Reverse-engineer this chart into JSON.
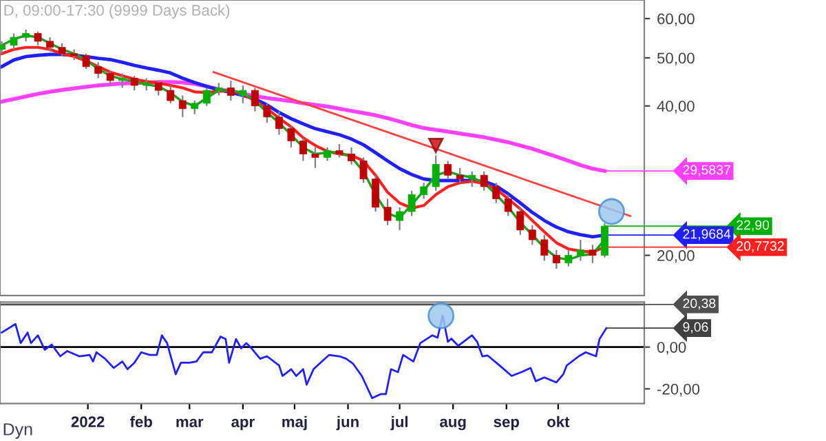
{
  "chart_data": [
    {
      "type": "candlestick",
      "title": "D, 09:00-17:30 (9999 Days Back)",
      "x": [
        "2021-11-12",
        "2021-11-19",
        "2021-11-26",
        "2021-12-03",
        "2021-12-10",
        "2021-12-17",
        "2021-12-24",
        "2021-12-31",
        "2022-01-07",
        "2022-01-14",
        "2022-01-21",
        "2022-01-28",
        "2022-02-04",
        "2022-02-11",
        "2022-02-18",
        "2022-02-25",
        "2022-03-04",
        "2022-03-11",
        "2022-03-18",
        "2022-03-25",
        "2022-04-01",
        "2022-04-08",
        "2022-04-15",
        "2022-04-22",
        "2022-04-29",
        "2022-05-06",
        "2022-05-13",
        "2022-05-20",
        "2022-05-27",
        "2022-06-03",
        "2022-06-10",
        "2022-06-17",
        "2022-06-24",
        "2022-07-01",
        "2022-07-08",
        "2022-07-15",
        "2022-07-22",
        "2022-07-29",
        "2022-08-05",
        "2022-08-12",
        "2022-08-19",
        "2022-08-26",
        "2022-09-02",
        "2022-09-09",
        "2022-09-16",
        "2022-09-23",
        "2022-09-30",
        "2022-10-07",
        "2022-10-14",
        "2022-10-21",
        "2022-10-28"
      ],
      "ohlc": [
        [
          52,
          54,
          51,
          53
        ],
        [
          53,
          56,
          52,
          55
        ],
        [
          55,
          57,
          54,
          56
        ],
        [
          56,
          56.5,
          53,
          54
        ],
        [
          54,
          55,
          51.5,
          52.5
        ],
        [
          52.5,
          53.5,
          50.5,
          51
        ],
        [
          51,
          52,
          49.5,
          50.5
        ],
        [
          50.5,
          51,
          47.5,
          48
        ],
        [
          48,
          49,
          45.5,
          46.5
        ],
        [
          46.5,
          47,
          44,
          45
        ],
        [
          45,
          46.5,
          43.5,
          45.5
        ],
        [
          45.5,
          46,
          43,
          44
        ],
        [
          44,
          45.5,
          43,
          44.5
        ],
        [
          44.5,
          45,
          42,
          43
        ],
        [
          43,
          44,
          40.5,
          41
        ],
        [
          41,
          42,
          38,
          39.5
        ],
        [
          39.5,
          41,
          38.5,
          40.5
        ],
        [
          40.5,
          43.5,
          40,
          43
        ],
        [
          43,
          44.5,
          42,
          43.5
        ],
        [
          43.5,
          45,
          41,
          42
        ],
        [
          42,
          44,
          40.5,
          43
        ],
        [
          43,
          43.5,
          39,
          40
        ],
        [
          40,
          40.5,
          37,
          38
        ],
        [
          38,
          39,
          35,
          36
        ],
        [
          36,
          36.5,
          33,
          34
        ],
        [
          34,
          34.5,
          31,
          32
        ],
        [
          32,
          33,
          30,
          31.5
        ],
        [
          31.5,
          33,
          31,
          32.5
        ],
        [
          32.5,
          33.5,
          31.5,
          32
        ],
        [
          32,
          33,
          30.5,
          31
        ],
        [
          31,
          31.5,
          28,
          28.5
        ],
        [
          28.5,
          29,
          24.5,
          25
        ],
        [
          25,
          26,
          23,
          23.5
        ],
        [
          23.5,
          25,
          22.5,
          24.5
        ],
        [
          24.5,
          27,
          24,
          26.5
        ],
        [
          26.5,
          28,
          26,
          27.5
        ],
        [
          27.5,
          31.8,
          27,
          30.5
        ],
        [
          30.5,
          31,
          28.5,
          29
        ],
        [
          29,
          30,
          28,
          28.5
        ],
        [
          28.5,
          29.5,
          27.5,
          29
        ],
        [
          29,
          29.5,
          27,
          27.5
        ],
        [
          27.5,
          28,
          25.5,
          26
        ],
        [
          26,
          26.5,
          24,
          24.5
        ],
        [
          24.5,
          25,
          22,
          22.5
        ],
        [
          22.5,
          23,
          21,
          21.5
        ],
        [
          21.5,
          22,
          19.5,
          20
        ],
        [
          20,
          20.5,
          18.8,
          19.3
        ],
        [
          19.3,
          20.5,
          19,
          20
        ],
        [
          20,
          21.5,
          19.5,
          20.5
        ],
        [
          20.5,
          21,
          19.3,
          20
        ],
        [
          20,
          23.2,
          19.8,
          22.9
        ]
      ],
      "colors": [
        "#00b000",
        "#00b000",
        "#00b000",
        "#c00000",
        "#c00000",
        "#c00000",
        "#c00000",
        "#c00000",
        "#c00000",
        "#c00000",
        "#00b000",
        "#c00000",
        "#00b000",
        "#c00000",
        "#c00000",
        "#c00000",
        "#00b000",
        "#00b000",
        "#00b000",
        "#c00000",
        "#00b000",
        "#c00000",
        "#c00000",
        "#c00000",
        "#c00000",
        "#c00000",
        "#c00000",
        "#00b000",
        "#c00000",
        "#c00000",
        "#c00000",
        "#c00000",
        "#c00000",
        "#00b000",
        "#00b000",
        "#00b000",
        "#00b000",
        "#c00000",
        "#c00000",
        "#00b000",
        "#c00000",
        "#c00000",
        "#c00000",
        "#c00000",
        "#c00000",
        "#c00000",
        "#c00000",
        "#00b000",
        "#00b000",
        "#c00000",
        "#00b000"
      ],
      "series": [
        {
          "type": "line",
          "color": "#ff40ff",
          "values": [
            40.8,
            41.3,
            41.8,
            42.3,
            42.7,
            43.1,
            43.4,
            43.7,
            44.0,
            44.2,
            44.4,
            44.5,
            44.6,
            44.7,
            44.7,
            44.6,
            44.3,
            43.8,
            43.2,
            42.8,
            42.3,
            41.9,
            41.5,
            41.2,
            40.9,
            40.5,
            40.2,
            39.9,
            39.5,
            39.1,
            38.7,
            38.3,
            37.8,
            37.2,
            36.6,
            36.1,
            35.8,
            35.5,
            35.2,
            34.9,
            34.6,
            34.2,
            33.8,
            33.3,
            32.8,
            32.2,
            31.6,
            31.0,
            30.4,
            29.9,
            29.5837
          ]
        },
        {
          "type": "line",
          "color": "#2020ff",
          "values": [
            48,
            49.5,
            50.3,
            50.6,
            50.8,
            50.8,
            50.6,
            50.3,
            49.9,
            49.6,
            49.0,
            48.3,
            47.7,
            47.2,
            46.6,
            45.5,
            44.6,
            43.8,
            43.1,
            42.6,
            42.0,
            41.3,
            40.2,
            38.8,
            37.7,
            36.8,
            36.0,
            35.5,
            35.0,
            34.3,
            33.4,
            32.2,
            31.0,
            29.9,
            29.1,
            28.5,
            28.3,
            28.3,
            28.3,
            28.3,
            28.2,
            27.6,
            26.6,
            25.5,
            24.4,
            23.5,
            22.8,
            22.3,
            22.0,
            21.8,
            21.9684
          ]
        },
        {
          "type": "line",
          "color": "#ff2020",
          "values": [
            51,
            52,
            52.5,
            52.5,
            52,
            51,
            50.3,
            49.3,
            48,
            46.8,
            46,
            45.3,
            44.8,
            44.5,
            44,
            43.5,
            42.7,
            42.6,
            42.8,
            43,
            42.2,
            41,
            39.5,
            37.8,
            36.3,
            34.5,
            33.3,
            32.4,
            32,
            31.8,
            31,
            29,
            26.8,
            25.5,
            24.9,
            25.2,
            26.5,
            27.5,
            28,
            28.2,
            27.9,
            27.2,
            26,
            24.8,
            23.5,
            22.3,
            21.2,
            20.6,
            20.4,
            20.3,
            20.7732
          ]
        },
        {
          "type": "line",
          "color": "#20a020",
          "values": [
            53,
            54.5,
            55.5,
            55,
            53.5,
            52,
            51,
            49.5,
            47.5,
            46,
            45.3,
            44.8,
            44.2,
            43.8,
            42.5,
            40.8,
            40,
            41.5,
            43,
            43,
            42.5,
            41,
            38.8,
            37,
            35,
            33,
            32,
            32.2,
            32.3,
            31.5,
            29.5,
            26.5,
            24.3,
            23.8,
            25.3,
            27,
            29,
            29.5,
            29,
            28.7,
            28,
            26.5,
            25,
            23.3,
            22,
            20.7,
            19.8,
            19.6,
            20,
            20.1,
            21.5
          ]
        },
        {
          "type": "line",
          "color": "#ff4040",
          "x": [
            "2022-03-15",
            "2022-11-12"
          ],
          "values": [
            46.8,
            24.0
          ]
        }
      ],
      "log": "y",
      "xlim": [
        "2021-11-11",
        "2022-11-20"
      ],
      "ylim": [
        16.6,
        65.4
      ],
      "yticks": [
        {
          "value": 20,
          "label": "20,00"
        },
        {
          "value": 40,
          "label": "40,00"
        },
        {
          "value": 50,
          "label": "50,00"
        },
        {
          "value": 60,
          "label": "60,00"
        }
      ],
      "tick_labels": "y",
      "grid": false,
      "annotations": [
        {
          "text": "29,5837",
          "x": "2022-10-28",
          "y": 29.5837
        },
        {
          "text": "22,90",
          "x": "2022-10-28",
          "y": 22.9
        },
        {
          "text": "21,9684",
          "x": "2022-10-28",
          "y": 21.9684
        },
        {
          "text": "20,7732",
          "x": "2022-10-28",
          "y": 20.7732
        }
      ]
    },
    {
      "type": "line",
      "series": [
        {
          "color": "#2020ff",
          "x": [
            "2021-11-12",
            "2021-11-20",
            "2021-11-23",
            "2021-11-27",
            "2021-11-29",
            "2021-12-03",
            "2021-12-07",
            "2021-12-11",
            "2021-12-16",
            "2021-12-20",
            "2021-12-27",
            "2022-01-02",
            "2022-01-04",
            "2022-01-06",
            "2022-01-11",
            "2022-01-16",
            "2022-01-21",
            "2022-01-24",
            "2022-01-28",
            "2022-02-01",
            "2022-02-06",
            "2022-02-10",
            "2022-02-13",
            "2022-02-16",
            "2022-02-21",
            "2022-02-24",
            "2022-03-01",
            "2022-03-05",
            "2022-03-09",
            "2022-03-14",
            "2022-03-19",
            "2022-03-22",
            "2022-03-24",
            "2022-03-28",
            "2022-03-31",
            "2022-04-03",
            "2022-04-06",
            "2022-04-11",
            "2022-04-15",
            "2022-04-22",
            "2022-04-24",
            "2022-04-29",
            "2022-05-02",
            "2022-05-06",
            "2022-05-08",
            "2022-05-12",
            "2022-05-16",
            "2022-05-21",
            "2022-05-27",
            "2022-05-31",
            "2022-06-04",
            "2022-06-09",
            "2022-06-15",
            "2022-06-20",
            "2022-06-23",
            "2022-06-26",
            "2022-06-30",
            "2022-07-03",
            "2022-07-09",
            "2022-07-13",
            "2022-07-20",
            "2022-07-23",
            "2022-07-26",
            "2022-07-29",
            "2022-07-31",
            "2022-08-04",
            "2022-08-12",
            "2022-08-15",
            "2022-08-18",
            "2022-08-21",
            "2022-08-28",
            "2022-09-04",
            "2022-09-10",
            "2022-09-15",
            "2022-09-18",
            "2022-09-23",
            "2022-09-30",
            "2022-10-04",
            "2022-10-06",
            "2022-10-13",
            "2022-10-17",
            "2022-10-23",
            "2022-10-25",
            "2022-10-29"
          ],
          "values": [
            6.9,
            11,
            1.9,
            6.9,
            1.9,
            5.6,
            -1.3,
            1.2,
            -4.4,
            -1.9,
            -4.4,
            -3.8,
            -6.9,
            -2.5,
            -5.6,
            -10,
            -6.9,
            -10.6,
            -7.5,
            -2.5,
            -3.8,
            -3.8,
            5.6,
            1.9,
            -13,
            -7.5,
            -7.5,
            -6.9,
            -2.5,
            -2.5,
            5,
            3.8,
            -7.5,
            3.8,
            -0.6,
            1.9,
            -0.6,
            -5.6,
            -4.4,
            -8.8,
            -13.8,
            -10.6,
            -13.8,
            -10.6,
            -18,
            -10.6,
            -7.5,
            -3.8,
            -4.4,
            -5.6,
            -8,
            -13.8,
            -24.4,
            -22.5,
            -22.5,
            -10.6,
            -12,
            -3.8,
            -6.9,
            1.9,
            5.6,
            4.5,
            15,
            2.5,
            4,
            0.6,
            5.6,
            2.5,
            -4.4,
            -4,
            -8.8,
            -13.8,
            -11.9,
            -10,
            -16.3,
            -14.5,
            -16.9,
            -13,
            -8.8,
            -4.4,
            -2.5,
            -4.4,
            3.8,
            9.06
          ]
        }
      ],
      "xlim": [
        "2021-11-11",
        "2022-11-20"
      ],
      "ylim": [
        -27,
        21.5
      ],
      "xticks": [
        {
          "value": "2022-01-01",
          "label": "2022"
        },
        {
          "value": "2022-02-01",
          "label": "feb"
        },
        {
          "value": "2022-03-01",
          "label": "mar"
        },
        {
          "value": "2022-04-01",
          "label": "apr"
        },
        {
          "value": "2022-05-01",
          "label": "maj"
        },
        {
          "value": "2022-06-01",
          "label": "jun"
        },
        {
          "value": "2022-07-01",
          "label": "jul"
        },
        {
          "value": "2022-08-01",
          "label": "aug"
        },
        {
          "value": "2022-09-01",
          "label": "sep"
        },
        {
          "value": "2022-10-01",
          "label": "okt"
        }
      ],
      "yticks": [
        {
          "value": 0,
          "label": "0,00"
        },
        {
          "value": -20,
          "label": "-20,00"
        }
      ],
      "ref_lines": [
        {
          "axis": "y",
          "value": 0,
          "color": "#000000"
        },
        {
          "axis": "y",
          "value": 20.38,
          "label": "20,38",
          "color": "#505050"
        }
      ],
      "grid": false,
      "annotations": [
        {
          "text": "9,06",
          "x": "2022-10-29",
          "y": 9.06
        },
        "Dyn"
      ]
    }
  ]
}
